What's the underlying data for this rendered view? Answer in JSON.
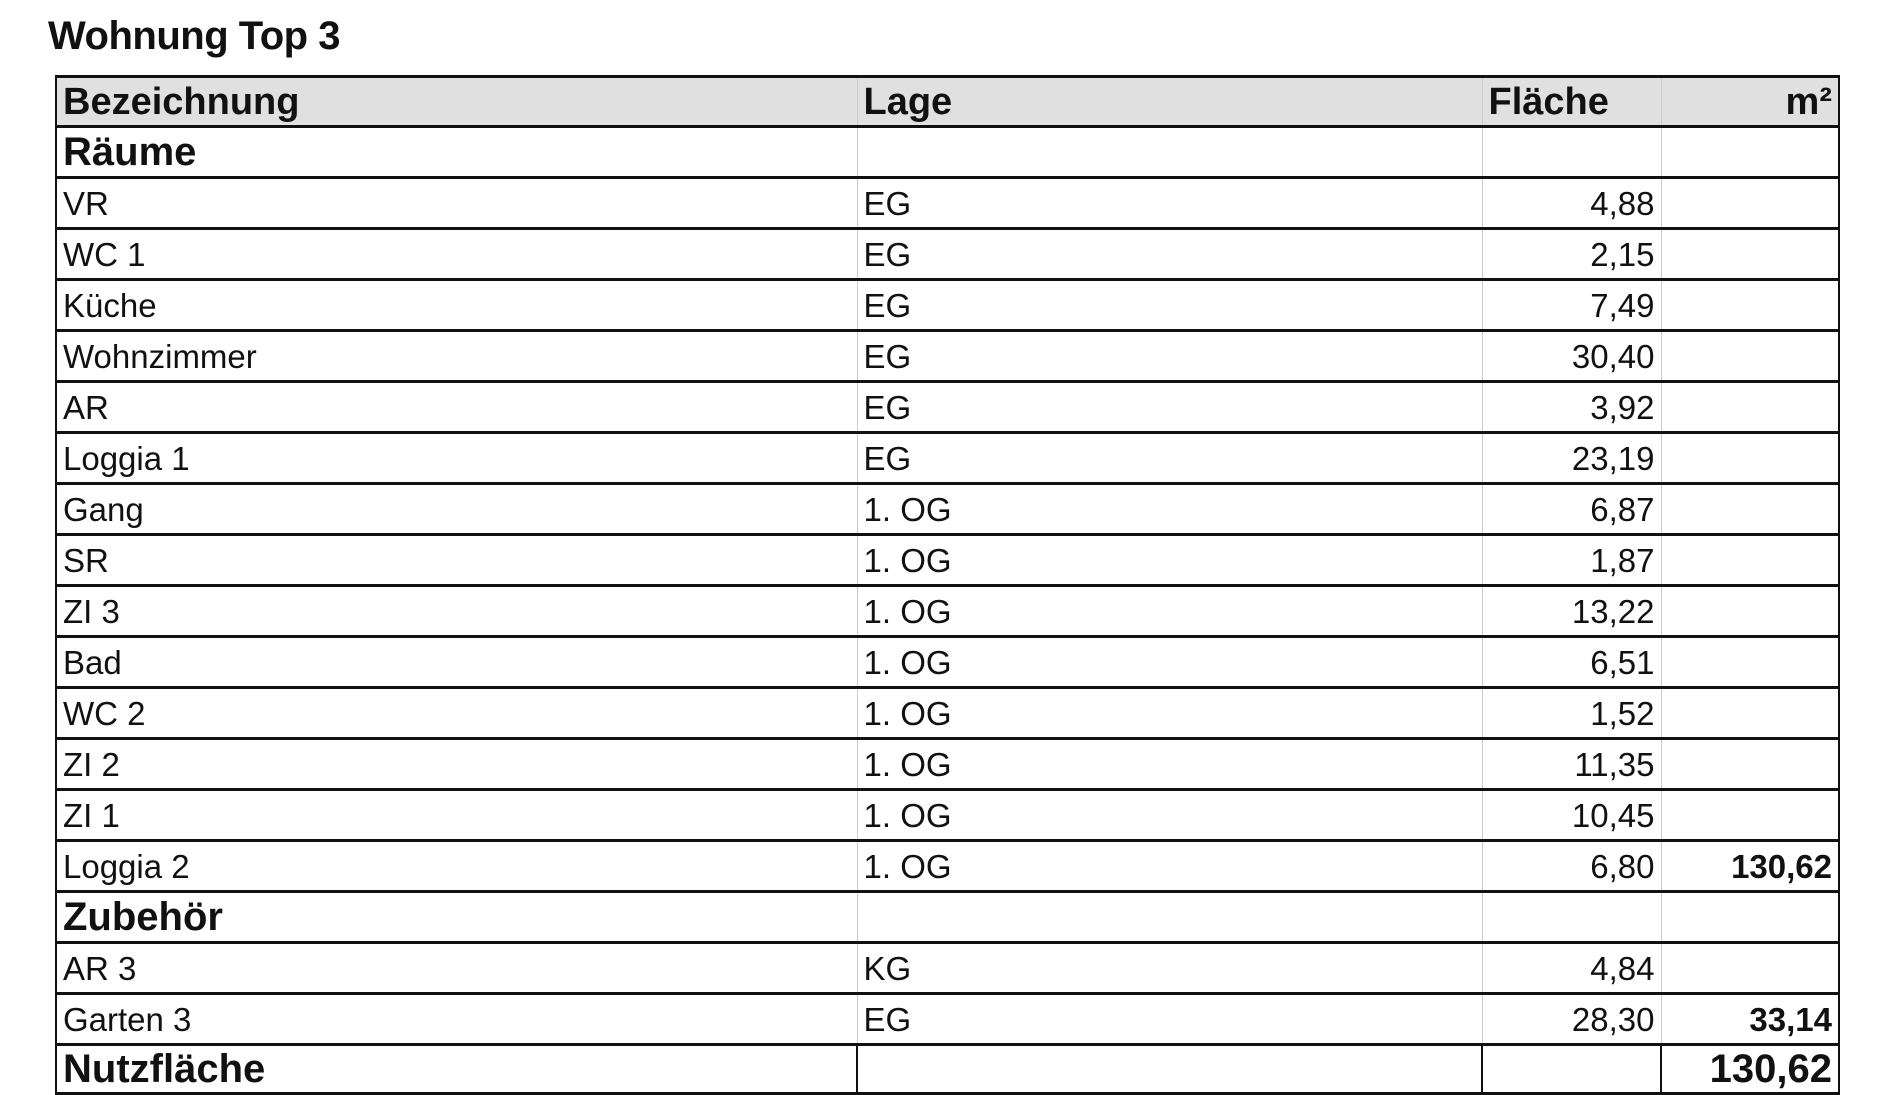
{
  "title": "Wohnung Top 3",
  "headers": [
    "Bezeichnung",
    "Lage",
    "Fläche",
    "m²"
  ],
  "sections": [
    {
      "label": "Räume",
      "rows": [
        {
          "name": "VR",
          "lage": "EG",
          "flaeche": "4,88",
          "sum": ""
        },
        {
          "name": "WC 1",
          "lage": "EG",
          "flaeche": "2,15",
          "sum": ""
        },
        {
          "name": "Küche",
          "lage": "EG",
          "flaeche": "7,49",
          "sum": ""
        },
        {
          "name": "Wohnzimmer",
          "lage": "EG",
          "flaeche": "30,40",
          "sum": ""
        },
        {
          "name": "AR",
          "lage": "EG",
          "flaeche": "3,92",
          "sum": ""
        },
        {
          "name": "Loggia 1",
          "lage": "EG",
          "flaeche": "23,19",
          "sum": ""
        },
        {
          "name": "Gang",
          "lage": "1. OG",
          "flaeche": "6,87",
          "sum": ""
        },
        {
          "name": "SR",
          "lage": "1. OG",
          "flaeche": "1,87",
          "sum": ""
        },
        {
          "name": "ZI 3",
          "lage": "1. OG",
          "flaeche": "13,22",
          "sum": ""
        },
        {
          "name": "Bad",
          "lage": "1. OG",
          "flaeche": "6,51",
          "sum": ""
        },
        {
          "name": "WC 2",
          "lage": "1. OG",
          "flaeche": "1,52",
          "sum": ""
        },
        {
          "name": "ZI 2",
          "lage": "1. OG",
          "flaeche": "11,35",
          "sum": ""
        },
        {
          "name": "ZI 1",
          "lage": "1. OG",
          "flaeche": "10,45",
          "sum": ""
        },
        {
          "name": "Loggia 2",
          "lage": "1. OG",
          "flaeche": "6,80",
          "sum": "130,62"
        }
      ]
    },
    {
      "label": "Zubehör",
      "rows": [
        {
          "name": "AR 3",
          "lage": "KG",
          "flaeche": "4,84",
          "sum": ""
        },
        {
          "name": "Garten 3",
          "lage": "EG",
          "flaeche": "28,30",
          "sum": "33,14"
        }
      ]
    }
  ],
  "total": {
    "label": "Nutzfläche",
    "value": "130,62"
  }
}
